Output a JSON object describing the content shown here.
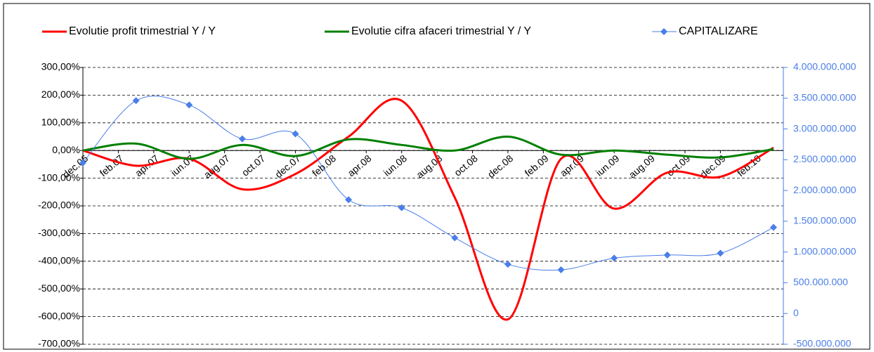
{
  "chart_data": {
    "type": "line",
    "span_gaps": true,
    "categories": [
      "dec.06",
      null,
      "feb.07",
      null,
      "apr.07",
      null,
      "iun.07",
      null,
      "aug.07",
      null,
      "oct.07",
      null,
      "dec.07",
      null,
      "feb.08",
      null,
      "apr.08",
      null,
      "iun.08",
      null,
      "aug.08",
      null,
      "oct.08",
      null,
      "dec.08",
      null,
      "feb.09",
      null,
      "apr.09",
      null,
      "iun.09",
      null,
      "aug.09",
      null,
      "oct.09",
      null,
      "dec.09",
      null,
      "feb.10",
      null
    ],
    "series": [
      {
        "name": "Evolutie profit trimestrial Y / Y",
        "color": "#ff0000",
        "axis": "y",
        "markers": false,
        "values": [
          0,
          null,
          null,
          -55,
          null,
          null,
          -30,
          null,
          null,
          -140,
          null,
          null,
          -85,
          null,
          null,
          50,
          null,
          null,
          180,
          null,
          null,
          -170,
          null,
          null,
          -610,
          null,
          null,
          -30,
          null,
          null,
          -210,
          null,
          null,
          -80,
          null,
          null,
          -95,
          null,
          null,
          10
        ]
      },
      {
        "name": "Evolutie cifra afaceri trimestrial Y / Y",
        "color": "#008000",
        "axis": "y",
        "markers": false,
        "values": [
          0,
          null,
          null,
          25,
          null,
          null,
          -30,
          null,
          null,
          20,
          null,
          null,
          -20,
          null,
          null,
          40,
          null,
          null,
          20,
          null,
          null,
          0,
          null,
          null,
          50,
          null,
          null,
          -15,
          null,
          null,
          0,
          null,
          null,
          -15,
          null,
          null,
          -25,
          null,
          null,
          5
        ]
      },
      {
        "name": "CAPITALIZARE",
        "color": "#4a7ee8",
        "axis": "y2",
        "markers": true,
        "values": [
          2450000000,
          null,
          null,
          3460000000,
          null,
          null,
          3390000000,
          null,
          null,
          2840000000,
          null,
          null,
          2920000000,
          null,
          null,
          1850000000,
          null,
          null,
          1720000000,
          null,
          null,
          1230000000,
          null,
          null,
          800000000,
          null,
          null,
          710000000,
          null,
          null,
          900000000,
          null,
          null,
          950000000,
          null,
          null,
          980000000,
          null,
          null,
          1400000000
        ]
      }
    ],
    "ylim": [
      -700,
      300
    ],
    "yticks": [
      {
        "value": 300,
        "label": "300,00%"
      },
      {
        "value": 200,
        "label": "200,00%"
      },
      {
        "value": 100,
        "label": "100,00%"
      },
      {
        "value": 0,
        "label": "0,00%"
      },
      {
        "value": -100,
        "label": "-100,00%"
      },
      {
        "value": -200,
        "label": "-200,00%"
      },
      {
        "value": -300,
        "label": "-300,00%"
      },
      {
        "value": -400,
        "label": "-400,00%"
      },
      {
        "value": -500,
        "label": "-500,00%"
      },
      {
        "value": -600,
        "label": "-600,00%"
      },
      {
        "value": -700,
        "label": "-700,00%"
      }
    ],
    "y2lim": [
      -500000000,
      4000000000
    ],
    "y2ticks": [
      {
        "value": 4000000000,
        "label": "4.000.000.000"
      },
      {
        "value": 3500000000,
        "label": "3.500.000.000"
      },
      {
        "value": 3000000000,
        "label": "3.000.000.000"
      },
      {
        "value": 2500000000,
        "label": "2.500.000.000"
      },
      {
        "value": 2000000000,
        "label": "2.000.000.000"
      },
      {
        "value": 1500000000,
        "label": "1.500.000.000"
      },
      {
        "value": 1000000000,
        "label": "1.000.000.000"
      },
      {
        "value": 500000000,
        "label": "500.000.000"
      },
      0,
      {
        "value": -500000000,
        "label": "-500.000.000"
      }
    ],
    "y2color": "#4a7ee8",
    "grid": true,
    "legend": "top"
  }
}
